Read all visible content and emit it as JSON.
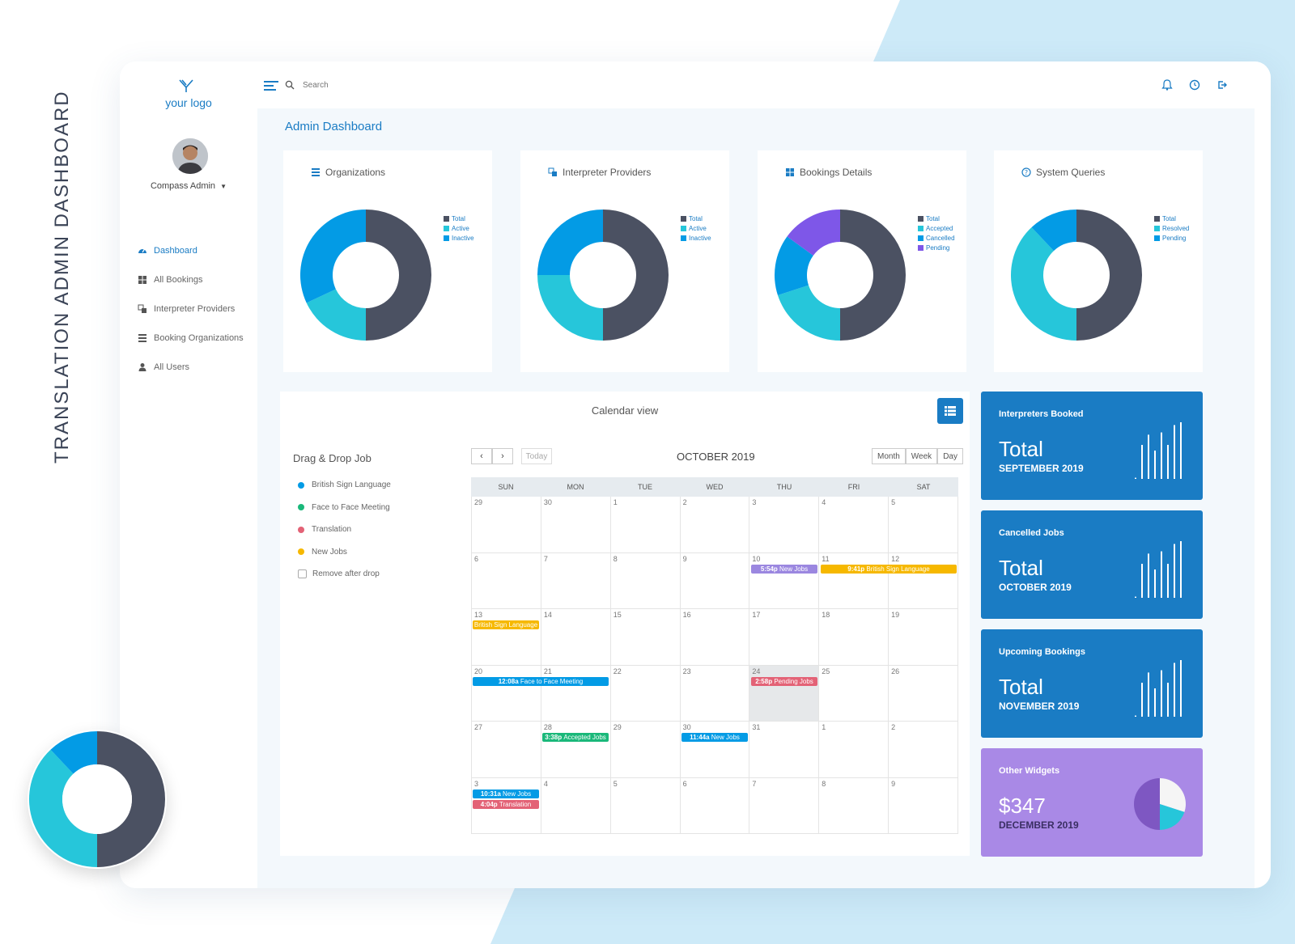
{
  "side_title": "TRANSLATION  ADMIN  DASHBOARD",
  "colors": {
    "brand_blue": "#1a7cc4",
    "dark": "#4b5162",
    "teal": "#26c6da",
    "sky": "#039be5",
    "purple": "#7e57e8",
    "widget_purple": "#a989e6"
  },
  "sidebar": {
    "logo_text": "your logo",
    "user_name": "Compass Admin",
    "items": [
      {
        "label": "Dashboard",
        "icon": "dashboard-icon"
      },
      {
        "label": "All Bookings",
        "icon": "grid-icon"
      },
      {
        "label": "Interpreter Providers",
        "icon": "translate-icon"
      },
      {
        "label": "Booking Organizations",
        "icon": "list-icon"
      },
      {
        "label": "All Users",
        "icon": "user-icon"
      }
    ]
  },
  "topbar": {
    "search_placeholder": "Search",
    "icons": [
      "bell-icon",
      "clock-icon",
      "logout-icon"
    ]
  },
  "main": {
    "title": "Admin Dashboard"
  },
  "donut_cards": [
    {
      "title": "Organizations",
      "icon": "list-icon",
      "legend": [
        "Total",
        "Active",
        "Inactive"
      ],
      "values": [
        50,
        18,
        32
      ],
      "colors": [
        "#4b5162",
        "#26c6da",
        "#039be5"
      ]
    },
    {
      "title": "Interpreter Providers",
      "icon": "translate-icon",
      "legend": [
        "Total",
        "Active",
        "Inactive"
      ],
      "values": [
        50,
        25,
        25
      ],
      "colors": [
        "#4b5162",
        "#26c6da",
        "#039be5"
      ]
    },
    {
      "title": "Bookings Details",
      "icon": "grid-icon",
      "legend": [
        "Total",
        "Accepted",
        "Cancelled",
        "Pending"
      ],
      "values": [
        50,
        20,
        15,
        15
      ],
      "colors": [
        "#4b5162",
        "#26c6da",
        "#039be5",
        "#7e57e8"
      ]
    },
    {
      "title": "System Queries",
      "icon": "help-icon",
      "legend": [
        "Total",
        "Resolved",
        "Pending"
      ],
      "values": [
        50,
        38,
        12
      ],
      "colors": [
        "#4b5162",
        "#26c6da",
        "#039be5"
      ]
    }
  ],
  "calendar": {
    "title": "Calendar view",
    "drag_title": "Drag & Drop Job",
    "jobs": [
      {
        "label": "British Sign Language",
        "color": "#039be5"
      },
      {
        "label": "Face to Face Meeting",
        "color": "#1ab87a"
      },
      {
        "label": "Translation",
        "color": "#e36276"
      },
      {
        "label": "New Jobs",
        "color": "#f6b800"
      }
    ],
    "remove_label": "Remove after drop",
    "today_label": "Today",
    "month_label": "OCTOBER 2019",
    "views": [
      "Month",
      "Week",
      "Day"
    ],
    "weekdays": [
      "SUN",
      "MON",
      "TUE",
      "WED",
      "THU",
      "FRI",
      "SAT"
    ],
    "weeks": [
      [
        "29",
        "30",
        "1",
        "2",
        "3",
        "4",
        "5"
      ],
      [
        "6",
        "7",
        "8",
        "9",
        "10",
        "11",
        "12"
      ],
      [
        "13",
        "14",
        "15",
        "16",
        "17",
        "18",
        "19"
      ],
      [
        "20",
        "21",
        "22",
        "23",
        "24",
        "25",
        "26"
      ],
      [
        "27",
        "28",
        "29",
        "30",
        "31",
        "1",
        "2"
      ],
      [
        "3",
        "4",
        "5",
        "6",
        "7",
        "8",
        "9"
      ]
    ],
    "highlight": {
      "week": 3,
      "day": 4
    },
    "events": [
      {
        "week": 1,
        "day": 4,
        "span": 1,
        "slot": 0,
        "time": "5:54p",
        "label": "New Jobs",
        "color": "#9b87e0"
      },
      {
        "week": 1,
        "day": 5,
        "span": 2,
        "slot": 0,
        "time": "9:41p",
        "label": "British Sign Language",
        "color": "#f6b800"
      },
      {
        "week": 2,
        "day": 0,
        "span": 1,
        "slot": 0,
        "time": "",
        "label": "British Sign Language",
        "color": "#f6b800"
      },
      {
        "week": 3,
        "day": 0,
        "span": 2,
        "slot": 0,
        "time": "12:08a",
        "label": "Face to Face Meeting",
        "color": "#039be5"
      },
      {
        "week": 3,
        "day": 4,
        "span": 1,
        "slot": 0,
        "time": "2:58p",
        "label": "Pending Jobs",
        "color": "#e36276"
      },
      {
        "week": 4,
        "day": 1,
        "span": 1,
        "slot": 0,
        "time": "3:38p",
        "label": "Accepted Jobs",
        "color": "#1ab87a"
      },
      {
        "week": 4,
        "day": 3,
        "span": 1,
        "slot": 0,
        "time": "11:44a",
        "label": "New Jobs",
        "color": "#039be5"
      },
      {
        "week": 5,
        "day": 0,
        "span": 1,
        "slot": 0,
        "time": "10:31a",
        "label": "New Jobs",
        "color": "#039be5"
      },
      {
        "week": 5,
        "day": 0,
        "span": 1,
        "slot": 1,
        "time": "4:04p",
        "label": "Translation",
        "color": "#e36276"
      }
    ]
  },
  "stat_cards": [
    {
      "label": "Interpreters Booked",
      "value": "Total",
      "period": "SEPTEMBER 2019",
      "bars": [
        0.02,
        0.6,
        0.78,
        0.5,
        0.82,
        0.6,
        0.95,
        1.0
      ]
    },
    {
      "label": "Cancelled Jobs",
      "value": "Total",
      "period": "OCTOBER 2019",
      "bars": [
        0.02,
        0.6,
        0.78,
        0.5,
        0.82,
        0.6,
        0.95,
        1.0
      ]
    },
    {
      "label": "Upcoming Bookings",
      "value": "Total",
      "period": "NOVEMBER 2019",
      "bars": [
        0.02,
        0.6,
        0.78,
        0.5,
        0.82,
        0.6,
        0.95,
        1.0
      ]
    },
    {
      "label": "Other Widgets",
      "value": "$347",
      "period": "DECEMBER 2019",
      "pie": [
        30,
        20,
        50
      ],
      "pie_colors": [
        "#f5f5f5",
        "#26c6da",
        "#7e57c2"
      ]
    }
  ],
  "float_donut": {
    "values": [
      50,
      38,
      12
    ],
    "colors": [
      "#4b5162",
      "#26c6da",
      "#039be5"
    ]
  }
}
